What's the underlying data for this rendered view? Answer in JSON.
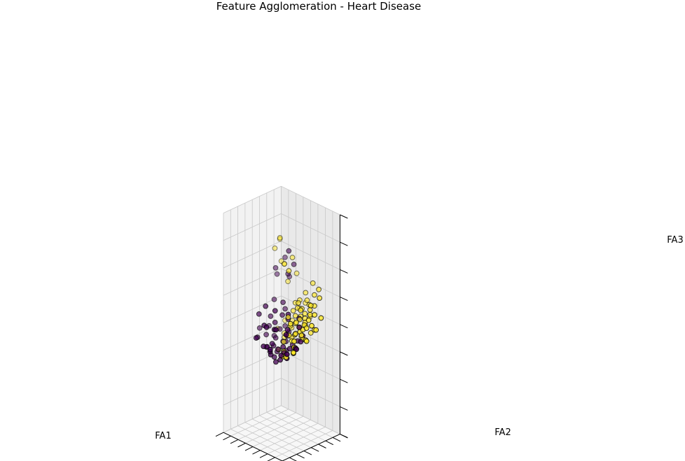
{
  "chart_data": {
    "type": "scatter",
    "title": "Feature Agglomeration - Heart Disease",
    "xlabel": "FA1",
    "ylabel": "FA2",
    "zlabel": "FA3",
    "grid": true,
    "legend": "none",
    "colors": {
      "class_0": "#440154",
      "class_1": "#fde725",
      "pane_left": "#f2f2f2",
      "pane_right": "#e9e9e9",
      "pane_floor": "#f7f7f7",
      "grid": "#c8c8c8",
      "axis": "#000000"
    },
    "series": [
      {
        "values": [
          {
            "x": 0.4,
            "y": -0.4,
            "z": -1.4
          },
          {
            "x": 0.0,
            "y": -0.2,
            "z": -1.3
          },
          {
            "x": 0.8,
            "y": -0.2,
            "z": -1.3
          },
          {
            "x": -0.3,
            "y": 0.2,
            "z": -1.2
          },
          {
            "x": 1.0,
            "y": 0.4,
            "z": -1.2
          },
          {
            "x": 0.2,
            "y": 0.8,
            "z": -1.1
          },
          {
            "x": 1.3,
            "y": 0.2,
            "z": -1.0
          },
          {
            "x": -0.6,
            "y": -0.7,
            "z": -1.0
          },
          {
            "x": 0.6,
            "y": -0.9,
            "z": -1.1
          },
          {
            "x": -1.0,
            "y": -0.3,
            "z": -1.1
          },
          {
            "x": 1.6,
            "y": -0.5,
            "z": -1.0
          },
          {
            "x": 0.9,
            "y": 1.1,
            "z": -0.9
          },
          {
            "x": -0.2,
            "y": 1.3,
            "z": -0.9
          },
          {
            "x": 1.9,
            "y": 0.9,
            "z": -0.8
          },
          {
            "x": 0.3,
            "y": -1.3,
            "z": -0.9
          },
          {
            "x": -1.3,
            "y": 0.6,
            "z": -0.8
          },
          {
            "x": 1.1,
            "y": -1.4,
            "z": -0.8
          },
          {
            "x": 2.2,
            "y": 0.1,
            "z": -0.7
          },
          {
            "x": -0.8,
            "y": 1.4,
            "z": -0.7
          },
          {
            "x": 0.7,
            "y": 1.7,
            "z": -0.6
          },
          {
            "x": -1.6,
            "y": -0.9,
            "z": -0.8
          },
          {
            "x": 1.7,
            "y": 1.5,
            "z": -0.6
          },
          {
            "x": 0.1,
            "y": 0.3,
            "z": -0.9
          },
          {
            "x": 0.5,
            "y": 0.0,
            "z": -1.0
          },
          {
            "x": -0.4,
            "y": -0.1,
            "z": -1.0
          },
          {
            "x": 1.2,
            "y": -0.8,
            "z": -0.9
          },
          {
            "x": -0.9,
            "y": 0.9,
            "z": -0.9
          },
          {
            "x": 2.4,
            "y": -0.9,
            "z": -0.7
          },
          {
            "x": -1.9,
            "y": 0.1,
            "z": -0.7
          },
          {
            "x": 1.4,
            "y": 1.9,
            "z": -0.5
          },
          {
            "x": 0.0,
            "y": 1.9,
            "z": -0.6
          },
          {
            "x": 2.0,
            "y": -1.5,
            "z": -0.6
          },
          {
            "x": -0.2,
            "y": -1.8,
            "z": -0.7
          },
          {
            "x": -1.2,
            "y": 1.7,
            "z": -0.5
          },
          {
            "x": 2.5,
            "y": 0.8,
            "z": -0.5
          },
          {
            "x": 0.9,
            "y": -0.4,
            "z": -0.8
          },
          {
            "x": 0.3,
            "y": 0.9,
            "z": -0.8
          },
          {
            "x": -0.6,
            "y": 0.5,
            "z": -0.9
          },
          {
            "x": 1.5,
            "y": 0.7,
            "z": -0.8
          },
          {
            "x": 0.6,
            "y": 1.4,
            "z": -0.7
          },
          {
            "x": -1.5,
            "y": 1.1,
            "z": -0.6
          },
          {
            "x": 2.8,
            "y": -0.2,
            "z": -0.5
          },
          {
            "x": 0.4,
            "y": -0.6,
            "z": -0.2
          },
          {
            "x": 1.0,
            "y": 0.1,
            "z": -0.1
          },
          {
            "x": -0.5,
            "y": 0.3,
            "z": -0.2
          },
          {
            "x": 0.2,
            "y": 1.1,
            "z": 0.0
          },
          {
            "x": 1.3,
            "y": -1.1,
            "z": -0.1
          },
          {
            "x": -1.1,
            "y": -0.5,
            "z": -0.2
          },
          {
            "x": 0.8,
            "y": 0.9,
            "z": 0.1
          },
          {
            "x": -0.1,
            "y": -0.9,
            "z": -0.1
          },
          {
            "x": 1.8,
            "y": 0.3,
            "z": 0.0
          },
          {
            "x": -0.8,
            "y": 1.6,
            "z": 0.1
          },
          {
            "x": 2.1,
            "y": -1.0,
            "z": 0.2
          },
          {
            "x": 0.5,
            "y": -1.6,
            "z": 0.0
          },
          {
            "x": -1.7,
            "y": 0.7,
            "z": 0.0
          },
          {
            "x": 1.1,
            "y": 1.6,
            "z": 0.2
          },
          {
            "x": -0.3,
            "y": 0.6,
            "z": 0.3
          },
          {
            "x": 0.7,
            "y": -0.2,
            "z": 0.4
          },
          {
            "x": 1.6,
            "y": -0.6,
            "z": 0.5
          },
          {
            "x": 1.0,
            "y": 1.2,
            "z": 0.5
          },
          {
            "x": 2.0,
            "y": 1.0,
            "z": 0.5
          },
          {
            "x": 2.3,
            "y": 1.7,
            "z": 1.3
          },
          {
            "x": 2.1,
            "y": 1.3,
            "z": 1.6
          },
          {
            "x": 1.2,
            "y": 2.1,
            "z": 1.4
          },
          {
            "x": 0.6,
            "y": 2.3,
            "z": 1.8
          },
          {
            "x": 1.8,
            "y": 2.3,
            "z": 1.9
          },
          {
            "x": 1.5,
            "y": 2.6,
            "z": 1.2
          },
          {
            "x": 0.9,
            "y": 1.9,
            "z": 2.3
          }
        ]
      },
      {
        "values": [
          {
            "x": -1.4,
            "y": 1.8,
            "z": 0.0
          },
          {
            "x": -1.2,
            "y": 2.0,
            "z": 0.1
          },
          {
            "x": -0.9,
            "y": 2.3,
            "z": 0.2
          },
          {
            "x": -1.7,
            "y": 1.4,
            "z": 0.0
          },
          {
            "x": -0.6,
            "y": 2.0,
            "z": 0.1
          },
          {
            "x": -1.0,
            "y": 1.5,
            "z": 0.1
          },
          {
            "x": -1.9,
            "y": 1.0,
            "z": -0.1
          },
          {
            "x": -0.4,
            "y": 2.4,
            "z": 0.3
          },
          {
            "x": -1.5,
            "y": 2.4,
            "z": 0.4
          },
          {
            "x": -0.8,
            "y": 1.2,
            "z": 0.0
          },
          {
            "x": -2.1,
            "y": 1.6,
            "z": 0.2
          },
          {
            "x": -1.1,
            "y": 2.7,
            "z": 0.5
          },
          {
            "x": -0.2,
            "y": 1.7,
            "z": 0.1
          },
          {
            "x": -1.6,
            "y": 0.9,
            "z": -0.2
          },
          {
            "x": -0.7,
            "y": 2.8,
            "z": 0.6
          },
          {
            "x": -2.3,
            "y": 1.1,
            "z": 0.0
          },
          {
            "x": -1.3,
            "y": 1.1,
            "z": -0.1
          },
          {
            "x": 0.0,
            "y": 2.2,
            "z": 0.3
          },
          {
            "x": -1.8,
            "y": 2.1,
            "z": 0.3
          },
          {
            "x": -0.5,
            "y": 1.4,
            "z": -0.1
          },
          {
            "x": -2.0,
            "y": 2.5,
            "z": 0.6
          },
          {
            "x": -0.3,
            "y": 3.0,
            "z": 0.8
          },
          {
            "x": -1.2,
            "y": 0.7,
            "z": -0.3
          },
          {
            "x": 0.2,
            "y": 2.7,
            "z": 0.5
          },
          {
            "x": -2.5,
            "y": 2.0,
            "z": 0.4
          },
          {
            "x": -0.9,
            "y": 0.9,
            "z": -0.4
          },
          {
            "x": -1.6,
            "y": 2.9,
            "z": 0.9
          },
          {
            "x": 0.3,
            "y": 1.9,
            "z": 0.2
          },
          {
            "x": -2.2,
            "y": 0.5,
            "z": -0.2
          },
          {
            "x": -0.1,
            "y": 1.1,
            "z": -0.2
          },
          {
            "x": -1.4,
            "y": 0.3,
            "z": -0.5
          },
          {
            "x": -2.7,
            "y": 1.4,
            "z": 0.1
          },
          {
            "x": -0.6,
            "y": 0.4,
            "z": -0.4
          },
          {
            "x": 0.5,
            "y": 2.4,
            "z": 0.4
          },
          {
            "x": -1.9,
            "y": 3.2,
            "z": 1.1
          },
          {
            "x": -2.4,
            "y": 2.8,
            "z": 0.9
          },
          {
            "x": -1.0,
            "y": 3.3,
            "z": 1.2
          },
          {
            "x": -1.3,
            "y": 1.6,
            "z": -0.6
          },
          {
            "x": -0.8,
            "y": 1.9,
            "z": -0.6
          },
          {
            "x": -1.7,
            "y": 2.3,
            "z": -0.4
          },
          {
            "x": -0.4,
            "y": 1.0,
            "z": -0.7
          },
          {
            "x": -1.1,
            "y": 0.6,
            "z": -0.8
          },
          {
            "x": -2.0,
            "y": 1.3,
            "z": -0.5
          },
          {
            "x": 0.1,
            "y": 1.5,
            "z": -0.7
          },
          {
            "x": -0.7,
            "y": 2.6,
            "z": -0.3
          },
          {
            "x": -1.5,
            "y": 0.1,
            "z": -0.9
          },
          {
            "x": -2.3,
            "y": 2.2,
            "z": -0.2
          },
          {
            "x": 0.4,
            "y": 0.7,
            "z": -0.8
          },
          {
            "x": -0.2,
            "y": 0.1,
            "z": -1.0
          },
          {
            "x": -1.8,
            "y": -0.2,
            "z": -0.8
          },
          {
            "x": 0.7,
            "y": 2.1,
            "z": -0.5
          },
          {
            "x": -2.6,
            "y": 0.8,
            "z": -0.4
          },
          {
            "x": -0.5,
            "y": -0.3,
            "z": -1.1
          },
          {
            "x": 1.0,
            "y": 1.4,
            "z": -0.8
          },
          {
            "x": -1.2,
            "y": -0.6,
            "z": -1.0
          },
          {
            "x": 0.8,
            "y": 0.4,
            "z": -1.1
          },
          {
            "x": -2.8,
            "y": 1.9,
            "z": -0.1
          },
          {
            "x": -0.9,
            "y": 3.0,
            "z": 0.0
          },
          {
            "x": 0.6,
            "y": 3.1,
            "z": 0.1
          },
          {
            "x": -1.3,
            "y": 1.3,
            "z": 0.5
          },
          {
            "x": -0.5,
            "y": 1.8,
            "z": 0.6
          },
          {
            "x": -2.1,
            "y": 1.9,
            "z": 0.7
          },
          {
            "x": 1.3,
            "y": 2.8,
            "z": -0.4
          },
          {
            "x": 2.2,
            "y": 2.7,
            "z": -0.5
          },
          {
            "x": 1.6,
            "y": 2.0,
            "z": -0.8
          },
          {
            "x": 2.7,
            "y": 2.2,
            "z": -0.8
          },
          {
            "x": 0.2,
            "y": 3.5,
            "z": 0.3
          },
          {
            "x": -3.0,
            "y": 2.4,
            "z": 0.3
          },
          {
            "x": -0.3,
            "y": 0.6,
            "z": 0.2
          },
          {
            "x": -1.0,
            "y": 0.2,
            "z": 0.1
          },
          {
            "x": 1.1,
            "y": 3.2,
            "z": 1.3
          },
          {
            "x": 1.7,
            "y": 2.6,
            "z": 1.0
          },
          {
            "x": 1.3,
            "y": 1.7,
            "z": 1.8
          },
          {
            "x": 0.4,
            "y": 1.4,
            "z": 1.7
          },
          {
            "x": 0.9,
            "y": 2.4,
            "z": 2.0
          },
          {
            "x": 2.3,
            "y": 2.3,
            "z": 1.7
          },
          {
            "x": 2.5,
            "y": 2.9,
            "z": 1.5
          },
          {
            "x": 2.6,
            "y": 1.7,
            "z": 2.2
          },
          {
            "x": 2.2,
            "y": 2.0,
            "z": 2.6
          },
          {
            "x": 2.8,
            "y": 2.6,
            "z": 2.4
          }
        ]
      }
    ]
  }
}
